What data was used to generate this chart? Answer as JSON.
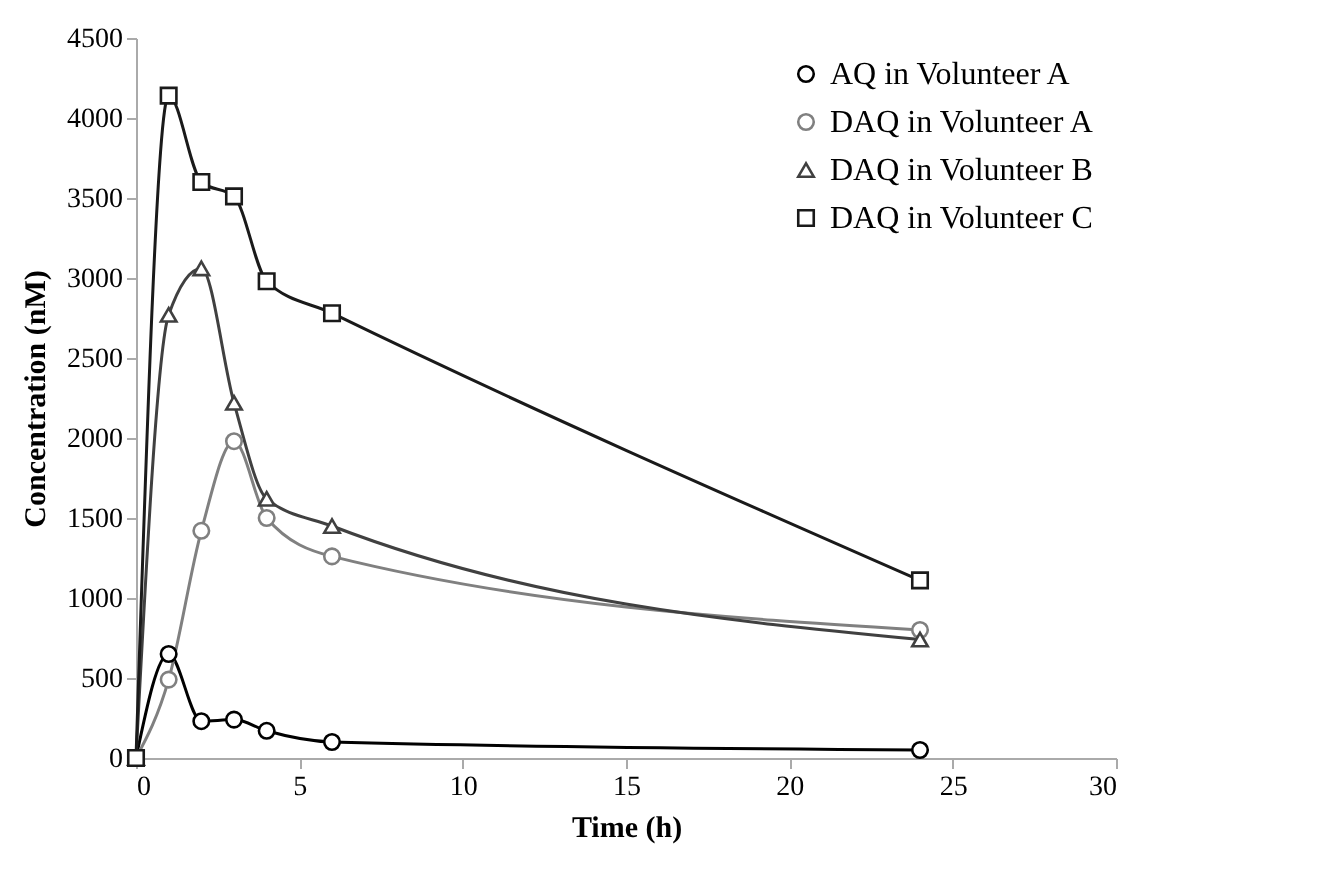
{
  "chart_data": {
    "type": "line",
    "xlabel": "Time (h)",
    "ylabel": "Concentration (nM)",
    "xlim": [
      0,
      30
    ],
    "xticks": [
      0,
      5,
      10,
      15,
      20,
      25,
      30
    ],
    "ylim": [
      0,
      4500
    ],
    "yticks": [
      0,
      500,
      1000,
      1500,
      2000,
      2500,
      3000,
      3500,
      4000,
      4500
    ],
    "grid": false,
    "legend": "top right",
    "line_style": "solid",
    "x": [
      0,
      1,
      2,
      3,
      4,
      6,
      24
    ],
    "series": [
      {
        "name": "AQ in Volunteer A",
        "color": "#000000",
        "marker": "circle",
        "values": [
          0,
          650,
          230,
          240,
          170,
          100,
          50
        ]
      },
      {
        "name": "DAQ in Volunteer A",
        "color": "#808080",
        "marker": "circle",
        "values": [
          0,
          490,
          1420,
          1980,
          1500,
          1260,
          800
        ]
      },
      {
        "name": "DAQ in Volunteer B",
        "color": "#404040",
        "marker": "triangle",
        "values": [
          0,
          2770,
          3060,
          2220,
          1620,
          1450,
          740
        ]
      },
      {
        "name": "DAQ in Volunteer C",
        "color": "#1a1a1a",
        "marker": "square",
        "values": [
          0,
          4140,
          3600,
          3510,
          2980,
          2780,
          1110
        ]
      }
    ]
  }
}
